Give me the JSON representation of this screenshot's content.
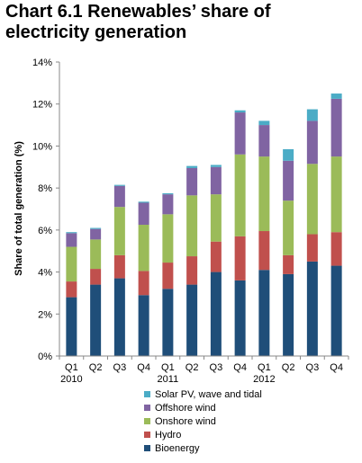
{
  "title_line1": "Chart 6.1 Renewables’ share of",
  "title_line2": "electricity generation",
  "chart_data": {
    "type": "bar",
    "stacked": true,
    "title": "Chart 6.1 Renewables’ share of electricity generation",
    "xlabel": "",
    "ylabel": "Share of total generation (%)",
    "ylim": [
      0,
      14
    ],
    "yticks": [
      "0%",
      "2%",
      "4%",
      "6%",
      "8%",
      "10%",
      "12%",
      "14%"
    ],
    "grid": false,
    "legend_position": "bottom",
    "categories": [
      "Q1",
      "Q2",
      "Q3",
      "Q4",
      "Q1",
      "Q2",
      "Q3",
      "Q4",
      "Q1",
      "Q2",
      "Q3",
      "Q4"
    ],
    "year_labels": [
      {
        "index": 0,
        "label": "2010"
      },
      {
        "index": 4,
        "label": "2011"
      },
      {
        "index": 8,
        "label": "2012"
      }
    ],
    "series": [
      {
        "name": "Bioenergy",
        "color": "#1f4e79",
        "values": [
          2.8,
          3.4,
          3.7,
          2.9,
          3.2,
          3.4,
          4.0,
          3.6,
          4.1,
          3.9,
          4.5,
          4.3
        ]
      },
      {
        "name": "Hydro",
        "color": "#c0504d",
        "values": [
          0.75,
          0.75,
          1.1,
          1.15,
          1.25,
          1.35,
          1.45,
          2.1,
          1.85,
          0.9,
          1.3,
          1.6
        ]
      },
      {
        "name": "Onshore wind",
        "color": "#9bbb59",
        "values": [
          1.65,
          1.4,
          2.3,
          2.2,
          2.3,
          2.9,
          2.25,
          3.9,
          3.55,
          2.6,
          3.35,
          3.6
        ]
      },
      {
        "name": "Offshore wind",
        "color": "#8064a2",
        "values": [
          0.65,
          0.5,
          1.0,
          1.05,
          0.95,
          1.3,
          1.3,
          2.0,
          1.5,
          1.9,
          2.05,
          2.75
        ]
      },
      {
        "name": "Solar PV, wave and tidal",
        "color": "#4bacc6",
        "values": [
          0.05,
          0.05,
          0.05,
          0.05,
          0.05,
          0.1,
          0.1,
          0.1,
          0.2,
          0.55,
          0.55,
          0.25
        ]
      }
    ]
  }
}
